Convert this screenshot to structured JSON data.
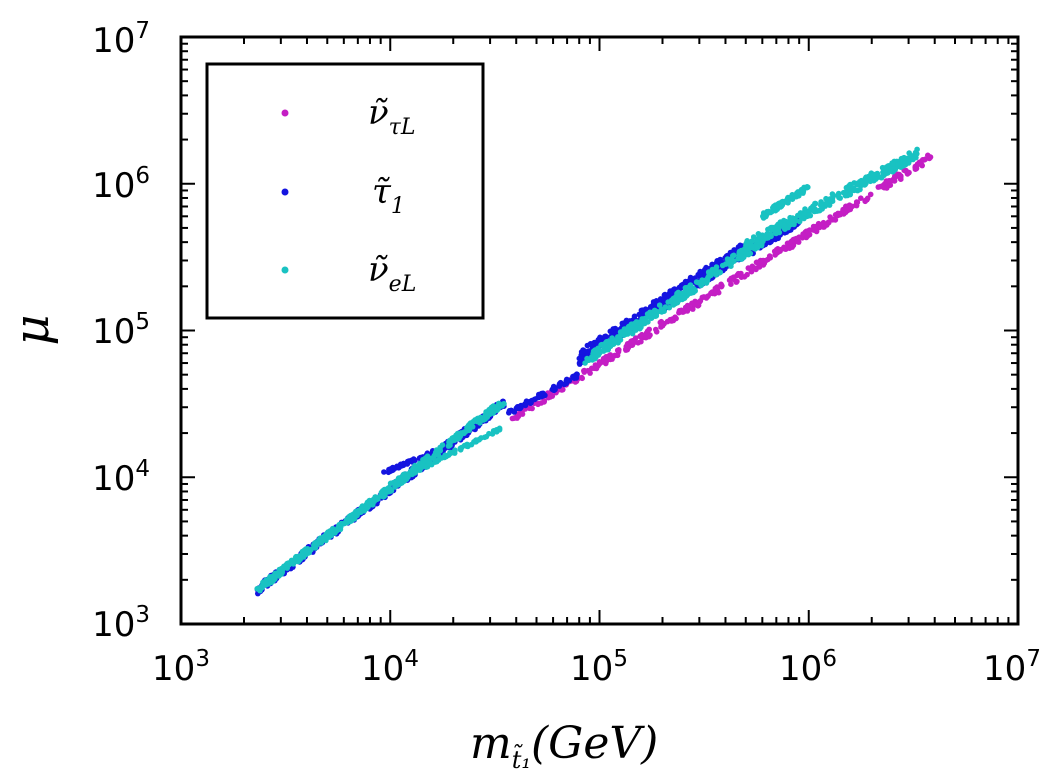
{
  "chart_data": {
    "type": "scatter",
    "title": "",
    "xlabel": {
      "base": "m",
      "subscript": "t̃₁",
      "unit": "(GeV)"
    },
    "ylabel": "μ",
    "xscale": "log",
    "yscale": "log",
    "xlim": [
      1000,
      10000000
    ],
    "ylim": [
      1000,
      10000000
    ],
    "grid": false,
    "legend_position": "top-left",
    "x_ticks": [
      {
        "base": "10",
        "exp": "3",
        "value": 1000
      },
      {
        "base": "10",
        "exp": "4",
        "value": 10000
      },
      {
        "base": "10",
        "exp": "5",
        "value": 100000
      },
      {
        "base": "10",
        "exp": "6",
        "value": 1000000
      },
      {
        "base": "10",
        "exp": "7",
        "value": 10000000
      }
    ],
    "y_ticks": [
      {
        "base": "10",
        "exp": "3",
        "value": 1000
      },
      {
        "base": "10",
        "exp": "4",
        "value": 10000
      },
      {
        "base": "10",
        "exp": "5",
        "value": 100000
      },
      {
        "base": "10",
        "exp": "6",
        "value": 1000000
      },
      {
        "base": "10",
        "exp": "7",
        "value": 10000000
      }
    ],
    "series": [
      {
        "name": "ν̃τL",
        "label_main": "ν̃",
        "label_sub": "τL",
        "color": "#c41ec4",
        "bands": [
          {
            "x_range": [
              38000,
              3900000
            ],
            "y_start": 25000,
            "y_end": 1550000,
            "width_dex": 0.05,
            "count": 360
          }
        ]
      },
      {
        "name": "τ̃1",
        "label_main": "τ̃",
        "label_sub": "1",
        "color": "#1414e0",
        "bands": [
          {
            "x_range": [
              2300,
              35000
            ],
            "y_start": 1700,
            "y_end": 32000,
            "width_dex": 0.06,
            "count": 380
          },
          {
            "x_range": [
              9000,
              20000
            ],
            "y_start": 10500,
            "y_end": 17000,
            "width_dex": 0.02,
            "count": 60
          },
          {
            "x_range": [
              36000,
              80000
            ],
            "y_start": 27000,
            "y_end": 50000,
            "width_dex": 0.03,
            "count": 50
          },
          {
            "x_range": [
              80000,
              500000
            ],
            "y_start": 65000,
            "y_end": 360000,
            "width_dex": 0.1,
            "count": 320
          },
          {
            "x_range": [
              500000,
              900000
            ],
            "y_start": 330000,
            "y_end": 560000,
            "width_dex": 0.06,
            "count": 80
          }
        ]
      },
      {
        "name": "ν̃eL",
        "label_main": "ν̃",
        "label_sub": "eL",
        "color": "#19c2c2",
        "bands": [
          {
            "x_range": [
              2300,
              35000
            ],
            "y_start": 1700,
            "y_end": 33000,
            "width_dex": 0.05,
            "count": 380
          },
          {
            "x_range": [
              10000,
              35000
            ],
            "y_start": 9000,
            "y_end": 22000,
            "width_dex": 0.02,
            "count": 70
          },
          {
            "x_range": [
              85000,
              600000
            ],
            "y_start": 62000,
            "y_end": 410000,
            "width_dex": 0.07,
            "count": 240
          },
          {
            "x_range": [
              500000,
              3300000
            ],
            "y_start": 380000,
            "y_end": 1600000,
            "width_dex": 0.07,
            "count": 260
          },
          {
            "x_range": [
              600000,
              1000000
            ],
            "y_start": 600000,
            "y_end": 950000,
            "width_dex": 0.04,
            "count": 70
          }
        ]
      }
    ]
  }
}
